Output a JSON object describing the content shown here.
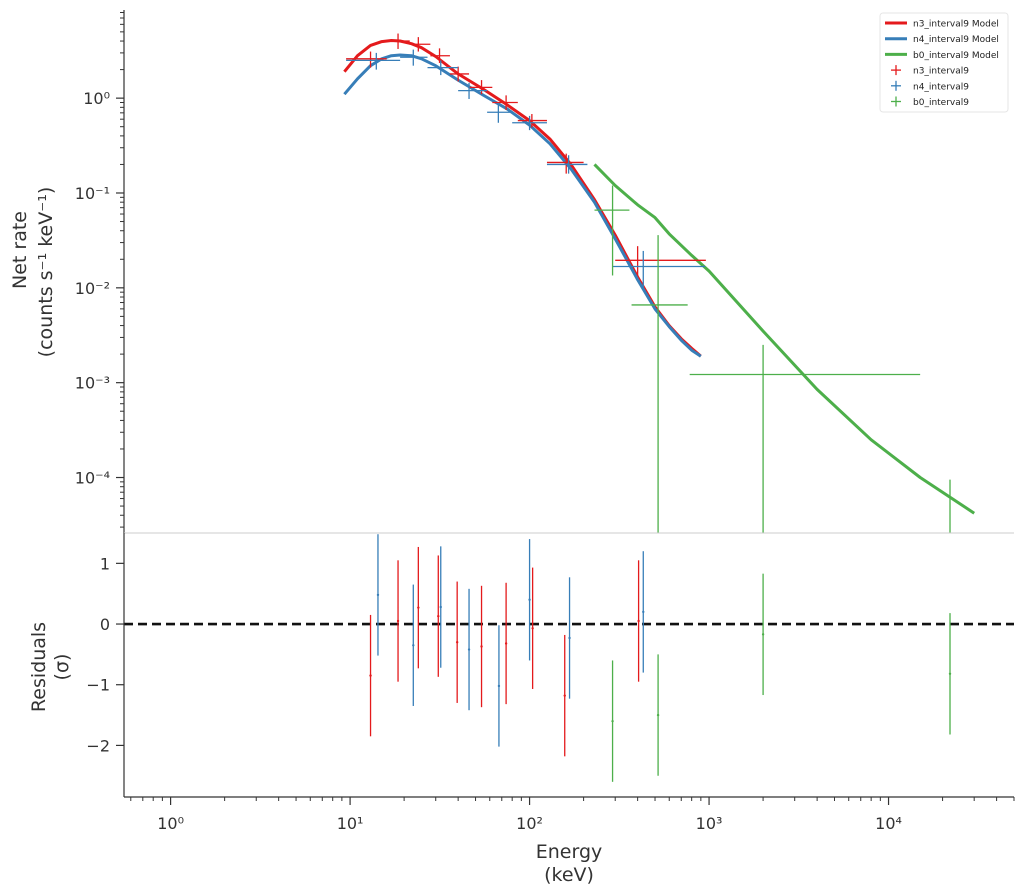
{
  "chart_data": [
    {
      "type": "line",
      "panel": "top",
      "xscale": "log",
      "yscale": "log",
      "xlim": [
        0.55,
        50000
      ],
      "ylim": [
        2.6e-05,
        8.5
      ],
      "ylabel_line1": "Net rate",
      "ylabel_line2": "(counts s⁻¹ keV⁻¹)",
      "yticks": [
        {
          "value": 1,
          "label": "10⁰"
        },
        {
          "value": 0.1,
          "label": "10⁻¹"
        },
        {
          "value": 0.01,
          "label": "10⁻²"
        },
        {
          "value": 0.001,
          "label": "10⁻³"
        },
        {
          "value": 0.0001,
          "label": "10⁻⁴"
        }
      ],
      "legend": {
        "placement": "top-right",
        "entries": [
          {
            "label": "n3_interval9 Model",
            "kind": "line",
            "color": "#e41a1c"
          },
          {
            "label": "n4_interval9 Model",
            "kind": "line",
            "color": "#377eb8"
          },
          {
            "label": "b0_interval9 Model",
            "kind": "line",
            "color": "#4daf4a"
          },
          {
            "label": "n3_interval9",
            "kind": "cross",
            "color": "#e41a1c"
          },
          {
            "label": "n4_interval9",
            "kind": "cross",
            "color": "#377eb8"
          },
          {
            "label": "b0_interval9",
            "kind": "cross",
            "color": "#4daf4a"
          }
        ]
      },
      "models": [
        {
          "name": "n3_interval9 Model",
          "color": "#e41a1c",
          "x": [
            9.3,
            11,
            13,
            15,
            17,
            19,
            22,
            25,
            30,
            40,
            55,
            75,
            100,
            130,
            170,
            230,
            300,
            400,
            500,
            600,
            700,
            800,
            900
          ],
          "y": [
            1.9,
            2.8,
            3.6,
            3.95,
            4.05,
            4.0,
            3.75,
            3.4,
            2.75,
            1.8,
            1.25,
            0.85,
            0.58,
            0.37,
            0.2,
            0.085,
            0.036,
            0.013,
            0.0063,
            0.004,
            0.0029,
            0.0023,
            0.0019
          ]
        },
        {
          "name": "n4_interval9 Model",
          "color": "#377eb8",
          "x": [
            9.3,
            11,
            13,
            15,
            17,
            19,
            22,
            25,
            30,
            40,
            55,
            75,
            100,
            130,
            170,
            230,
            300,
            400,
            500,
            600,
            700,
            800,
            900
          ],
          "y": [
            1.1,
            1.6,
            2.2,
            2.6,
            2.8,
            2.85,
            2.8,
            2.6,
            2.2,
            1.55,
            1.08,
            0.77,
            0.52,
            0.33,
            0.18,
            0.08,
            0.033,
            0.0122,
            0.006,
            0.0039,
            0.0028,
            0.0022,
            0.0019
          ]
        },
        {
          "name": "b0_interval9 Model",
          "color": "#4daf4a",
          "x": [
            230,
            300,
            400,
            500,
            600,
            800,
            1000,
            2000,
            4000,
            8000,
            15000,
            30000
          ],
          "y": [
            0.2,
            0.12,
            0.075,
            0.055,
            0.037,
            0.022,
            0.015,
            0.0035,
            0.00085,
            0.00025,
            0.0001,
            4.2e-05
          ]
        }
      ],
      "data_series": [
        {
          "name": "n3_interval9",
          "color": "#e41a1c",
          "points": [
            {
              "x": 13.0,
              "xlo": 9.5,
              "xhi": 16.0,
              "y": 2.6,
              "ylo": 2.1,
              "yhi": 3.1
            },
            {
              "x": 18.5,
              "xlo": 16.0,
              "xhi": 21.5,
              "y": 4.0,
              "ylo": 3.3,
              "yhi": 4.8
            },
            {
              "x": 24.0,
              "xlo": 21.5,
              "xhi": 28.0,
              "y": 3.7,
              "ylo": 3.1,
              "yhi": 4.4
            },
            {
              "x": 31.5,
              "xlo": 28.0,
              "xhi": 36.0,
              "y": 2.8,
              "ylo": 2.35,
              "yhi": 3.35
            },
            {
              "x": 40.0,
              "xlo": 36.0,
              "xhi": 46.0,
              "y": 1.8,
              "ylo": 1.5,
              "yhi": 2.15
            },
            {
              "x": 54.0,
              "xlo": 46.0,
              "xhi": 62.0,
              "y": 1.3,
              "ylo": 1.1,
              "yhi": 1.55
            },
            {
              "x": 74.0,
              "xlo": 62.0,
              "xhi": 86.0,
              "y": 0.9,
              "ylo": 0.75,
              "yhi": 1.07
            },
            {
              "x": 103.0,
              "xlo": 86.0,
              "xhi": 125.0,
              "y": 0.58,
              "ylo": 0.49,
              "yhi": 0.68
            },
            {
              "x": 160.0,
              "xlo": 125.0,
              "xhi": 200.0,
              "y": 0.21,
              "ylo": 0.16,
              "yhi": 0.26
            },
            {
              "x": 400.0,
              "xlo": 300.0,
              "xhi": 960.0,
              "y": 0.0195,
              "ylo": 0.0135,
              "yhi": 0.0275
            }
          ]
        },
        {
          "name": "n4_interval9",
          "color": "#377eb8",
          "points": [
            {
              "x": 14.0,
              "xlo": 9.5,
              "xhi": 19.0,
              "y": 2.5,
              "ylo": 2.0,
              "yhi": 3.0
            },
            {
              "x": 22.5,
              "xlo": 19.0,
              "xhi": 27.0,
              "y": 2.7,
              "ylo": 2.2,
              "yhi": 3.25
            },
            {
              "x": 32.0,
              "xlo": 27.0,
              "xhi": 40.0,
              "y": 2.1,
              "ylo": 1.75,
              "yhi": 2.5
            },
            {
              "x": 46.0,
              "xlo": 40.0,
              "xhi": 58.0,
              "y": 1.2,
              "ylo": 0.98,
              "yhi": 1.45
            },
            {
              "x": 67.0,
              "xlo": 58.0,
              "xhi": 80.0,
              "y": 0.71,
              "ylo": 0.55,
              "yhi": 0.89
            },
            {
              "x": 100.0,
              "xlo": 80.0,
              "xhi": 125.0,
              "y": 0.55,
              "ylo": 0.46,
              "yhi": 0.65
            },
            {
              "x": 165.0,
              "xlo": 125.0,
              "xhi": 210.0,
              "y": 0.2,
              "ylo": 0.16,
              "yhi": 0.25
            },
            {
              "x": 430.0,
              "xlo": 290.0,
              "xhi": 950.0,
              "y": 0.0168,
              "ylo": 0.01,
              "yhi": 0.0245
            }
          ]
        },
        {
          "name": "b0_interval9",
          "color": "#4daf4a",
          "points": [
            {
              "x": 290.0,
              "xlo": 230.0,
              "xhi": 360.0,
              "y": 0.066,
              "ylo": 0.0135,
              "yhi": 0.12
            },
            {
              "x": 520.0,
              "xlo": 370.0,
              "xhi": 760.0,
              "y": 0.0066,
              "ylo": 2.6e-05,
              "yhi": 0.036
            },
            {
              "x": 2000.0,
              "xlo": 780.0,
              "xhi": 15000.0,
              "y": 0.00122,
              "ylo": 2.6e-05,
              "yhi": 0.0025
            },
            {
              "x": 22000.0,
              "xlo": 22000.0,
              "xhi": 22000.0,
              "y": 2.65e-05,
              "ylo": 2.6e-05,
              "yhi": 9.5e-05
            }
          ]
        }
      ]
    },
    {
      "type": "scatter",
      "panel": "bottom",
      "xscale": "log",
      "xlim": [
        0.55,
        50000
      ],
      "ylim": [
        -2.85,
        1.5
      ],
      "ylabel_line1": "Residuals",
      "ylabel_line2": "(σ)",
      "xlabel_line1": "Energy",
      "xlabel_line2": "(keV)",
      "zero_line": 0,
      "yticks": [
        {
          "value": 1,
          "label": "1"
        },
        {
          "value": 0,
          "label": "0"
        },
        {
          "value": -1,
          "label": "−1"
        },
        {
          "value": -2,
          "label": "−2"
        }
      ],
      "xticks": [
        {
          "value": 1,
          "label": "10⁰"
        },
        {
          "value": 10,
          "label": "10¹"
        },
        {
          "value": 100,
          "label": "10²"
        },
        {
          "value": 1000,
          "label": "10³"
        },
        {
          "value": 10000,
          "label": "10⁴"
        }
      ],
      "residual_series": [
        {
          "name": "n3_interval9",
          "color": "#e41a1c",
          "points": [
            {
              "x": 13.0,
              "y": -0.85,
              "ylo": -1.85,
              "yhi": 0.15
            },
            {
              "x": 18.5,
              "y": 0.05,
              "ylo": -0.95,
              "yhi": 1.05
            },
            {
              "x": 24.0,
              "y": 0.27,
              "ylo": -0.73,
              "yhi": 1.27
            },
            {
              "x": 31.0,
              "y": 0.13,
              "ylo": -0.87,
              "yhi": 1.13
            },
            {
              "x": 39.5,
              "y": -0.3,
              "ylo": -1.3,
              "yhi": 0.7
            },
            {
              "x": 54.0,
              "y": -0.37,
              "ylo": -1.37,
              "yhi": 0.63
            },
            {
              "x": 74.0,
              "y": -0.32,
              "ylo": -1.32,
              "yhi": 0.68
            },
            {
              "x": 104.0,
              "y": -0.07,
              "ylo": -1.07,
              "yhi": 0.93
            },
            {
              "x": 157.0,
              "y": -1.18,
              "ylo": -2.18,
              "yhi": -0.18
            },
            {
              "x": 405.0,
              "y": 0.05,
              "ylo": -0.95,
              "yhi": 1.05
            }
          ]
        },
        {
          "name": "n4_interval9",
          "color": "#377eb8",
          "points": [
            {
              "x": 14.3,
              "y": 0.48,
              "ylo": -0.52,
              "yhi": 1.48
            },
            {
              "x": 22.5,
              "y": -0.35,
              "ylo": -1.35,
              "yhi": 0.65
            },
            {
              "x": 32.0,
              "y": 0.28,
              "ylo": -0.72,
              "yhi": 1.28
            },
            {
              "x": 46.0,
              "y": -0.42,
              "ylo": -1.42,
              "yhi": 0.58
            },
            {
              "x": 67.5,
              "y": -1.02,
              "ylo": -2.02,
              "yhi": -0.02
            },
            {
              "x": 100.0,
              "y": 0.4,
              "ylo": -0.6,
              "yhi": 1.4
            },
            {
              "x": 167.0,
              "y": -0.23,
              "ylo": -1.23,
              "yhi": 0.77
            },
            {
              "x": 430.0,
              "y": 0.2,
              "ylo": -0.8,
              "yhi": 1.2
            }
          ]
        },
        {
          "name": "b0_interval9",
          "color": "#4daf4a",
          "points": [
            {
              "x": 290.0,
              "y": -1.6,
              "ylo": -2.6,
              "yhi": -0.6
            },
            {
              "x": 520.0,
              "y": -1.5,
              "ylo": -2.5,
              "yhi": -0.5
            },
            {
              "x": 2000.0,
              "y": -0.17,
              "ylo": -1.17,
              "yhi": 0.83
            },
            {
              "x": 22000.0,
              "y": -0.82,
              "ylo": -1.82,
              "yhi": 0.18
            }
          ]
        }
      ]
    }
  ]
}
